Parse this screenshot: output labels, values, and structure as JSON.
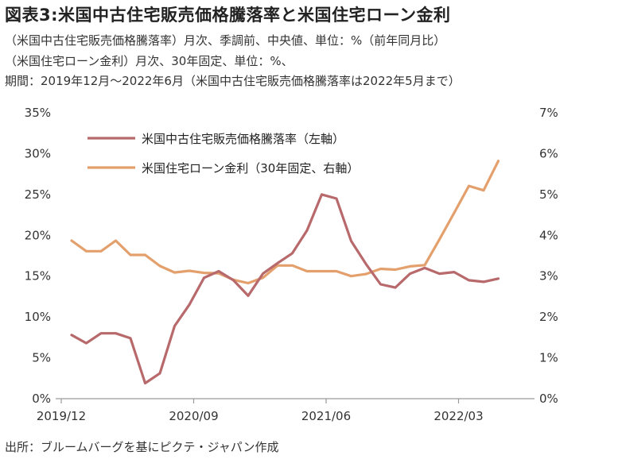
{
  "header": {
    "title": "図表3:米国中古住宅販売価格騰落率と米国住宅ローン金利",
    "subtitle_1": "（米国中古住宅販売価格騰落率）月次、季調前、中央値、単位：%（前年同月比）",
    "subtitle_2": "（米国住宅ローン金利）月次、30年固定、単位：%、",
    "subtitle_3": "期間：2019年12月～2022年6月（米国中古住宅販売価格騰落率は2022年5月まで）"
  },
  "footer": {
    "source": "出所：ブルームバーグを基にピクテ・ジャパン作成"
  },
  "chart_data": {
    "type": "line",
    "title": "図表3:米国中古住宅販売価格騰落率と米国住宅ローン金利",
    "x_tick_labels": [
      "2019/12",
      "2020/09",
      "2021/06",
      "2022/03"
    ],
    "x_tick_indices": [
      0,
      9,
      18,
      27
    ],
    "ylim_left": [
      0,
      35
    ],
    "ylim_right": [
      0,
      7
    ],
    "left_tick_labels": [
      "0%",
      "5%",
      "10%",
      "15%",
      "20%",
      "25%",
      "30%",
      "35%"
    ],
    "right_tick_labels": [
      "0%",
      "1%",
      "2%",
      "3%",
      "4%",
      "5%",
      "6%",
      "7%"
    ],
    "grid": false,
    "legend_position": "top-left",
    "series": [
      {
        "name": "米国中古住宅販売価格騰落率（左軸）",
        "axis": "left",
        "color": "#b8696b",
        "values": [
          7.8,
          6.8,
          8.0,
          8.0,
          7.4,
          1.9,
          3.1,
          8.9,
          11.5,
          14.8,
          15.6,
          14.5,
          12.6,
          15.3,
          16.6,
          17.8,
          20.6,
          25.0,
          24.5,
          19.3,
          16.5,
          14.0,
          13.6,
          15.3,
          16.0,
          15.3,
          15.5,
          14.5,
          14.3,
          14.7
        ],
        "x_indices": [
          0,
          1,
          2,
          3,
          4,
          5,
          6,
          7,
          8,
          9,
          10,
          11,
          12,
          13,
          14,
          15,
          16,
          17,
          18,
          19,
          20,
          21,
          22,
          23,
          24,
          25,
          26,
          27,
          28,
          29
        ]
      },
      {
        "name": "米国住宅ローン金利（30年固定、右軸）",
        "axis": "right",
        "color": "#e3a06c",
        "values": [
          3.87,
          3.61,
          3.61,
          3.87,
          3.52,
          3.52,
          3.25,
          3.09,
          3.13,
          3.08,
          3.07,
          2.91,
          2.83,
          2.96,
          3.26,
          3.26,
          3.12,
          3.12,
          3.12,
          3.0,
          3.05,
          3.18,
          3.16,
          3.24,
          3.27,
          3.9,
          4.55,
          5.21,
          5.1,
          5.82
        ],
        "x_indices": [
          0,
          1,
          2,
          3,
          4,
          5,
          6,
          7,
          8,
          9,
          10,
          11,
          12,
          13,
          14,
          15,
          16,
          17,
          18,
          19,
          20,
          21,
          22,
          23,
          24,
          25,
          26,
          27,
          28,
          29
        ]
      }
    ]
  }
}
